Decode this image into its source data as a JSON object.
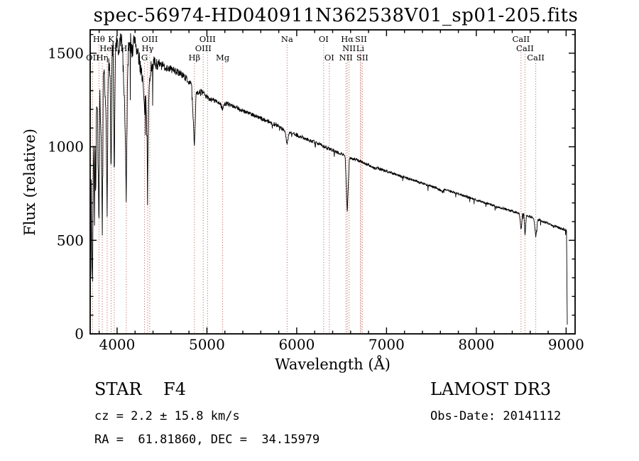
{
  "title": "spec-56974-HD040911N362538V01_sp01-205.fits",
  "footer": {
    "class_and_subclass": "STAR    F4",
    "survey": "LAMOST DR3",
    "cz": "cz = 2.2 ± 15.8 km/s",
    "obs_date": "Obs-Date: 20141112",
    "ra_dec": "RA =  61.81860, DEC =  34.15979"
  },
  "colors": {
    "background": "#ffffff",
    "frame": "#000000",
    "spectrum": "#000000",
    "spectral_marker": "#b5524a",
    "text": "#000000"
  },
  "chart_data": {
    "type": "line",
    "title": "spec-56974-HD040911N362538V01_sp01-205.fits",
    "xlabel": "Wavelength (Å)",
    "ylabel": "Flux (relative)",
    "xlim": [
      3700,
      9100
    ],
    "ylim": [
      0,
      1625
    ],
    "x_ticks": [
      4000,
      5000,
      6000,
      7000,
      8000,
      9000
    ],
    "y_ticks": [
      0,
      500,
      1000,
      1500
    ],
    "x_minor_step": 200,
    "y_minor_step": 100,
    "grid": false,
    "legend": "none",
    "spectral_lines": [
      {
        "label": "OII",
        "wavelength": 3727,
        "row": 3
      },
      {
        "label": "Hθ",
        "wavelength": 3798,
        "row": 1
      },
      {
        "label": "Hη",
        "wavelength": 3835,
        "row": 3
      },
      {
        "label": "HeI",
        "wavelength": 3889,
        "row": 2
      },
      {
        "label": "K",
        "wavelength": 3933,
        "row": 1
      },
      {
        "label": "H",
        "wavelength": 3968,
        "row": 2
      },
      {
        "label": "Hδ",
        "wavelength": 4102,
        "row": 2
      },
      {
        "label": "G",
        "wavelength": 4305,
        "row": 3
      },
      {
        "label": "Hγ",
        "wavelength": 4340,
        "row": 2
      },
      {
        "label": "OIII",
        "wavelength": 4363,
        "row": 1
      },
      {
        "label": "Hβ",
        "wavelength": 4861,
        "row": 3
      },
      {
        "label": "OIII",
        "wavelength": 4959,
        "row": 2
      },
      {
        "label": "OIII",
        "wavelength": 5007,
        "row": 1
      },
      {
        "label": "Mg",
        "wavelength": 5175,
        "row": 3
      },
      {
        "label": "Na",
        "wavelength": 5893,
        "row": 1
      },
      {
        "label": "OI",
        "wavelength": 6300,
        "row": 1
      },
      {
        "label": "OI",
        "wavelength": 6363,
        "row": 3
      },
      {
        "label": "NII",
        "wavelength": 6548,
        "row": 3
      },
      {
        "label": "Hα",
        "wavelength": 6563,
        "row": 1
      },
      {
        "label": "NII",
        "wavelength": 6583,
        "row": 2
      },
      {
        "label": "Li",
        "wavelength": 6708,
        "row": 2
      },
      {
        "label": "SII",
        "wavelength": 6716,
        "row": 1
      },
      {
        "label": "SII",
        "wavelength": 6731,
        "row": 3
      },
      {
        "label": "CaII",
        "wavelength": 8498,
        "row": 1
      },
      {
        "label": "CaII",
        "wavelength": 8542,
        "row": 2
      },
      {
        "label": "CaII",
        "wavelength": 8662,
        "row": 3
      }
    ],
    "series": [
      {
        "name": "spectrum",
        "points": [
          [
            3700,
            20
          ],
          [
            3703,
            680
          ],
          [
            3707,
            180
          ],
          [
            3712,
            820
          ],
          [
            3718,
            420
          ],
          [
            3727,
            300
          ],
          [
            3734,
            950
          ],
          [
            3741,
            1020
          ],
          [
            3748,
            560
          ],
          [
            3755,
            1100
          ],
          [
            3762,
            700
          ],
          [
            3770,
            1180
          ],
          [
            3780,
            1260
          ],
          [
            3790,
            820
          ],
          [
            3798,
            520
          ],
          [
            3806,
            1280
          ],
          [
            3815,
            1180
          ],
          [
            3825,
            950
          ],
          [
            3835,
            560
          ],
          [
            3845,
            1320
          ],
          [
            3856,
            1380
          ],
          [
            3868,
            1240
          ],
          [
            3878,
            1100
          ],
          [
            3889,
            620
          ],
          [
            3900,
            1400
          ],
          [
            3912,
            1460
          ],
          [
            3922,
            1360
          ],
          [
            3933,
            830
          ],
          [
            3944,
            1480
          ],
          [
            3956,
            1520
          ],
          [
            3968,
            780
          ],
          [
            3980,
            1500
          ],
          [
            3990,
            1540
          ],
          [
            4000,
            1560
          ],
          [
            4015,
            1470
          ],
          [
            4030,
            1560
          ],
          [
            4045,
            1580
          ],
          [
            4060,
            1520
          ],
          [
            4075,
            1340
          ],
          [
            4088,
            1150
          ],
          [
            4102,
            700
          ],
          [
            4115,
            1360
          ],
          [
            4128,
            1540
          ],
          [
            4142,
            1590
          ],
          [
            4156,
            1550
          ],
          [
            4170,
            1500
          ],
          [
            4185,
            1560
          ],
          [
            4200,
            1580
          ],
          [
            4215,
            1530
          ],
          [
            4230,
            1490
          ],
          [
            4245,
            1460
          ],
          [
            4260,
            1430
          ],
          [
            4275,
            1400
          ],
          [
            4290,
            1330
          ],
          [
            4305,
            1170
          ],
          [
            4320,
            1290
          ],
          [
            4332,
            1050
          ],
          [
            4340,
            860
          ],
          [
            4352,
            1250
          ],
          [
            4365,
            1380
          ],
          [
            4380,
            1430
          ],
          [
            4400,
            1450
          ],
          [
            4430,
            1445
          ],
          [
            4460,
            1440
          ],
          [
            4500,
            1432
          ],
          [
            4550,
            1424
          ],
          [
            4600,
            1415
          ],
          [
            4650,
            1405
          ],
          [
            4700,
            1392
          ],
          [
            4750,
            1375
          ],
          [
            4800,
            1350
          ],
          [
            4830,
            1325
          ],
          [
            4861,
            1000
          ],
          [
            4880,
            1295
          ],
          [
            4900,
            1290
          ],
          [
            4930,
            1295
          ],
          [
            4960,
            1285
          ],
          [
            5000,
            1265
          ],
          [
            5040,
            1255
          ],
          [
            5080,
            1248
          ],
          [
            5120,
            1240
          ],
          [
            5155,
            1222
          ],
          [
            5175,
            1200
          ],
          [
            5195,
            1228
          ],
          [
            5230,
            1230
          ],
          [
            5270,
            1220
          ],
          [
            5310,
            1210
          ],
          [
            5350,
            1205
          ],
          [
            5390,
            1196
          ],
          [
            5430,
            1188
          ],
          [
            5470,
            1180
          ],
          [
            5510,
            1172
          ],
          [
            5550,
            1163
          ],
          [
            5590,
            1154
          ],
          [
            5630,
            1146
          ],
          [
            5670,
            1138
          ],
          [
            5710,
            1130
          ],
          [
            5750,
            1121
          ],
          [
            5790,
            1112
          ],
          [
            5830,
            1100
          ],
          [
            5870,
            1082
          ],
          [
            5893,
            1010
          ],
          [
            5915,
            1078
          ],
          [
            5950,
            1072
          ],
          [
            5990,
            1064
          ],
          [
            6030,
            1056
          ],
          [
            6070,
            1049
          ],
          [
            6110,
            1042
          ],
          [
            6150,
            1034
          ],
          [
            6190,
            1026
          ],
          [
            6230,
            1018
          ],
          [
            6270,
            1010
          ],
          [
            6310,
            1000
          ],
          [
            6350,
            992
          ],
          [
            6390,
            984
          ],
          [
            6430,
            976
          ],
          [
            6470,
            968
          ],
          [
            6510,
            960
          ],
          [
            6540,
            950
          ],
          [
            6563,
            645
          ],
          [
            6585,
            932
          ],
          [
            6620,
            938
          ],
          [
            6660,
            930
          ],
          [
            6720,
            920
          ],
          [
            6760,
            912
          ],
          [
            6800,
            902
          ],
          [
            6840,
            892
          ],
          [
            6870,
            882
          ],
          [
            6900,
            886
          ],
          [
            6950,
            878
          ],
          [
            7000,
            870
          ],
          [
            7050,
            862
          ],
          [
            7100,
            853
          ],
          [
            7150,
            845
          ],
          [
            7200,
            837
          ],
          [
            7250,
            829
          ],
          [
            7300,
            821
          ],
          [
            7350,
            813
          ],
          [
            7400,
            805
          ],
          [
            7450,
            797
          ],
          [
            7500,
            789
          ],
          [
            7550,
            781
          ],
          [
            7600,
            768
          ],
          [
            7620,
            758
          ],
          [
            7650,
            770
          ],
          [
            7700,
            764
          ],
          [
            7750,
            756
          ],
          [
            7800,
            748
          ],
          [
            7850,
            740
          ],
          [
            7900,
            732
          ],
          [
            7950,
            724
          ],
          [
            8000,
            716
          ],
          [
            8050,
            708
          ],
          [
            8100,
            700
          ],
          [
            8150,
            692
          ],
          [
            8200,
            684
          ],
          [
            8250,
            677
          ],
          [
            8300,
            670
          ],
          [
            8350,
            663
          ],
          [
            8400,
            656
          ],
          [
            8450,
            649
          ],
          [
            8480,
            645
          ],
          [
            8498,
            550
          ],
          [
            8515,
            640
          ],
          [
            8530,
            636
          ],
          [
            8542,
            528
          ],
          [
            8558,
            632
          ],
          [
            8590,
            628
          ],
          [
            8620,
            624
          ],
          [
            8640,
            620
          ],
          [
            8662,
            515
          ],
          [
            8685,
            612
          ],
          [
            8725,
            604
          ],
          [
            8765,
            597
          ],
          [
            8805,
            589
          ],
          [
            8845,
            581
          ],
          [
            8885,
            573
          ],
          [
            8925,
            566
          ],
          [
            8965,
            560
          ],
          [
            8995,
            556
          ],
          [
            9005,
            550
          ],
          [
            9009,
            300
          ],
          [
            9012,
            80
          ],
          [
            9014,
            15
          ]
        ]
      }
    ]
  }
}
